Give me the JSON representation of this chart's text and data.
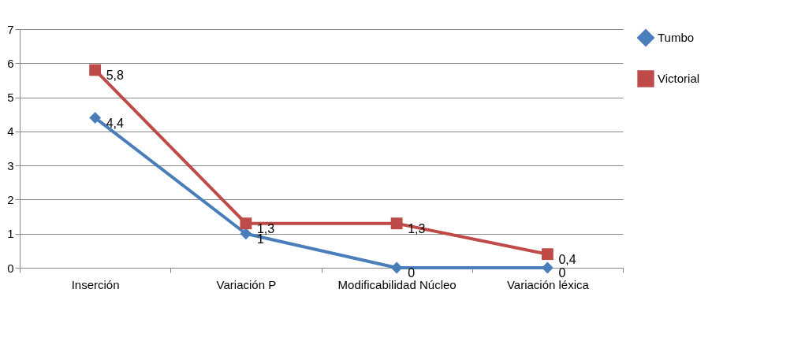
{
  "chart_data": {
    "type": "line",
    "categories": [
      "Inserción",
      "Variación P",
      "Modificabilidad Núcleo",
      "Variación léxica"
    ],
    "series": [
      {
        "name": "Tumbo",
        "color": "#4a7ebb",
        "marker": "diamond",
        "values": [
          4.4,
          1,
          0,
          0
        ],
        "value_labels": [
          "4,4",
          "1",
          "0",
          "0"
        ]
      },
      {
        "name": "Victorial",
        "color": "#be4b48",
        "marker": "square",
        "values": [
          5.8,
          1.3,
          1.3,
          0.4
        ],
        "value_labels": [
          "5,8",
          "1,3",
          "1,3",
          "0,4"
        ]
      }
    ],
    "ylim": [
      0,
      7
    ],
    "yticks": [
      0,
      1,
      2,
      3,
      4,
      5,
      6,
      7
    ],
    "grid": "y",
    "legend": "right"
  }
}
